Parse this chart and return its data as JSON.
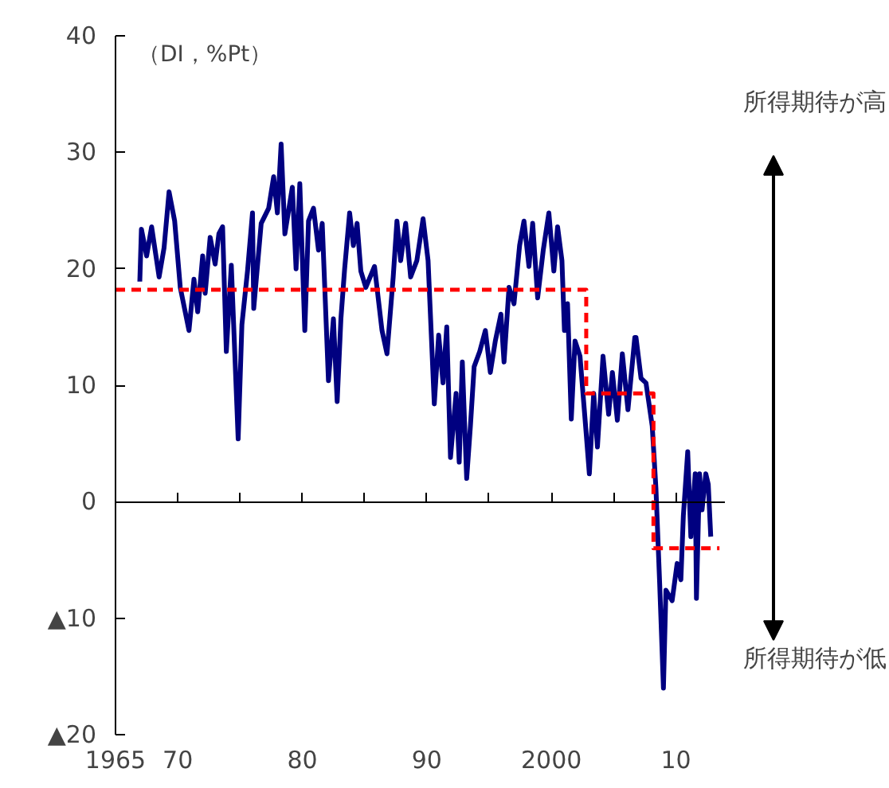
{
  "chart_data": {
    "type": "line",
    "ylabel": "（DI，%Pt）",
    "xlim": [
      1965,
      2014
    ],
    "ylim": [
      -20,
      40
    ],
    "xticks": [
      {
        "value": 1965,
        "label": "1965"
      },
      {
        "value": 1970,
        "label": "70"
      },
      {
        "value": 1975,
        "label": null
      },
      {
        "value": 1980,
        "label": "80"
      },
      {
        "value": 1985,
        "label": null
      },
      {
        "value": 1990,
        "label": "90"
      },
      {
        "value": 1995,
        "label": null
      },
      {
        "value": 2000,
        "label": "2000"
      },
      {
        "value": 2005,
        "label": null
      },
      {
        "value": 2010,
        "label": "10"
      }
    ],
    "yticks": [
      40,
      30,
      20,
      10,
      0,
      {
        "value": -10,
        "label": "▲10"
      },
      {
        "value": -20,
        "label": "▲20"
      }
    ],
    "annotations": [
      "所得期待が高",
      "所得期待が低"
    ],
    "series": [
      {
        "type": "line",
        "color": "#000080",
        "line_style": "solid",
        "x": [
          1966.95,
          1967.08,
          1967.5,
          1967.9,
          1968.5,
          1968.9,
          1969.3,
          1969.75,
          1970.2,
          1970.9,
          1971.3,
          1971.6,
          1972.0,
          1972.2,
          1972.6,
          1973.0,
          1973.3,
          1973.6,
          1973.9,
          1974.3,
          1974.85,
          1975.15,
          1975.6,
          1976.0,
          1976.1,
          1976.7,
          1977.3,
          1977.7,
          1978.0,
          1978.3,
          1978.6,
          1979.2,
          1979.5,
          1979.8,
          1980.2,
          1980.5,
          1980.9,
          1981.3,
          1981.6,
          1982.1,
          1982.5,
          1982.8,
          1983.1,
          1983.4,
          1983.8,
          1984.1,
          1984.4,
          1984.7,
          1985.1,
          1985.8,
          1986.4,
          1986.8,
          1987.3,
          1987.6,
          1987.9,
          1988.3,
          1988.7,
          1989.2,
          1989.7,
          1990.1,
          1990.6,
          1990.95,
          1991.3,
          1991.6,
          1991.9,
          1992.35,
          1992.6,
          1992.85,
          1993.2,
          1993.5,
          1993.8,
          1994.25,
          1994.7,
          1995.1,
          1995.5,
          1995.95,
          1996.2,
          1996.6,
          1997.0,
          1997.45,
          1997.8,
          1998.2,
          1998.5,
          1998.9,
          1999.35,
          1999.8,
          2000.2,
          2000.5,
          2000.85,
          2001.05,
          2001.3,
          2001.6,
          2001.9,
          2002.3,
          2002.75,
          2003.05,
          2003.4,
          2003.7,
          2004.15,
          2004.6,
          2004.9,
          2005.3,
          2005.7,
          2006.15,
          2006.7,
          2006.8,
          2007.2,
          2007.6,
          2008.1,
          2008.4,
          2008.7,
          2009.0,
          2009.2,
          2009.7,
          2010.1,
          2010.4,
          2010.6,
          2010.95,
          2011.2,
          2011.55,
          2011.65,
          2011.9,
          2012.1,
          2012.4,
          2012.6,
          2012.8
        ],
        "values": [
          18.9,
          23.4,
          21.1,
          23.6,
          19.3,
          21.8,
          26.6,
          24.1,
          18.4,
          14.7,
          19.1,
          16.3,
          21.1,
          17.9,
          22.7,
          20.4,
          23.0,
          23.6,
          12.9,
          20.3,
          5.4,
          15.2,
          19.8,
          24.8,
          16.6,
          23.9,
          25.2,
          27.9,
          24.8,
          30.7,
          23.0,
          27.0,
          20.0,
          27.3,
          14.7,
          24.1,
          25.2,
          21.6,
          23.9,
          10.4,
          15.7,
          8.6,
          15.7,
          20.0,
          24.8,
          22.0,
          23.9,
          19.8,
          18.4,
          20.2,
          14.7,
          12.7,
          19.3,
          24.1,
          20.7,
          23.9,
          19.3,
          20.7,
          24.3,
          20.7,
          8.4,
          14.3,
          10.2,
          15.0,
          3.8,
          9.3,
          3.4,
          12.0,
          2.0,
          6.5,
          11.6,
          12.9,
          14.7,
          11.1,
          13.8,
          16.1,
          12.0,
          18.4,
          17.0,
          22.0,
          24.1,
          20.2,
          23.9,
          17.5,
          21.6,
          24.8,
          19.8,
          23.6,
          20.7,
          14.7,
          17.0,
          7.1,
          13.8,
          12.5,
          6.5,
          2.4,
          9.3,
          4.7,
          12.5,
          7.5,
          11.1,
          7.0,
          12.7,
          7.9,
          14.1,
          14.1,
          10.6,
          10.2,
          6.5,
          1.1,
          -7.1,
          -16.0,
          -7.6,
          -8.5,
          -5.3,
          -6.7,
          -1.2,
          4.3,
          -3.0,
          2.4,
          -8.3,
          2.4,
          -0.7,
          2.4,
          1.5,
          -3.0
        ]
      },
      {
        "type": "step",
        "color": "#ff0000",
        "line_style": "dashed",
        "x": [
          1965,
          2002.8,
          2008.2,
          2013.5
        ],
        "values": [
          18.2,
          9.3,
          -4.0,
          -4.0
        ]
      }
    ]
  }
}
